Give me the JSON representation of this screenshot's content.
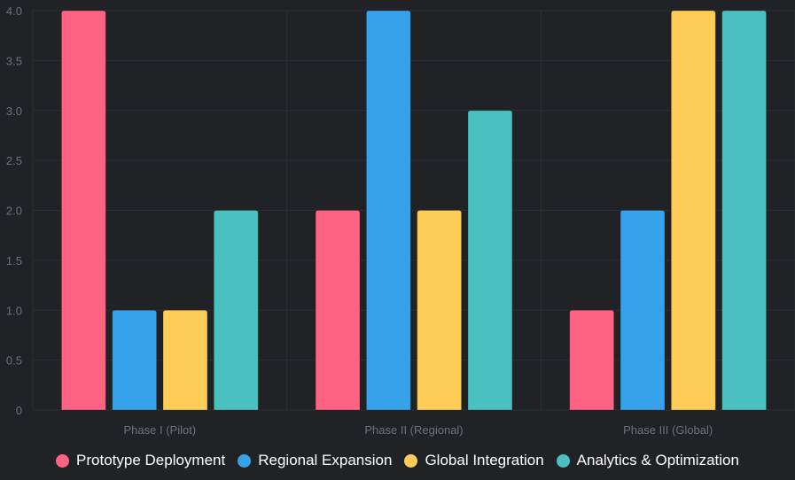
{
  "chart_data": {
    "type": "bar",
    "title": "",
    "xlabel": "",
    "ylabel": "",
    "categories": [
      "Phase I (Pilot)",
      "Phase II (Regional)",
      "Phase III (Global)"
    ],
    "ylim": [
      0,
      4
    ],
    "yticks": [
      "0",
      "0.5",
      "1.0",
      "1.5",
      "2.0",
      "2.5",
      "3.0",
      "3.5",
      "4.0"
    ],
    "grid": true,
    "legend_position": "bottom",
    "series": [
      {
        "name": "Prototype Deployment",
        "values": [
          4,
          2,
          1
        ],
        "color": "#ff6384"
      },
      {
        "name": "Regional Expansion",
        "values": [
          1,
          4,
          2
        ],
        "color": "#36a2eb"
      },
      {
        "name": "Global Integration",
        "values": [
          1,
          2,
          4
        ],
        "color": "#ffcd56"
      },
      {
        "name": "Analytics & Optimization",
        "values": [
          2,
          3,
          4
        ],
        "color": "#4bc0c0"
      }
    ]
  },
  "theme": {
    "background": "#212226",
    "grid_color": "#2d2e33",
    "tick_color": "#6f7178",
    "legend_text_color": "#ffffff"
  }
}
